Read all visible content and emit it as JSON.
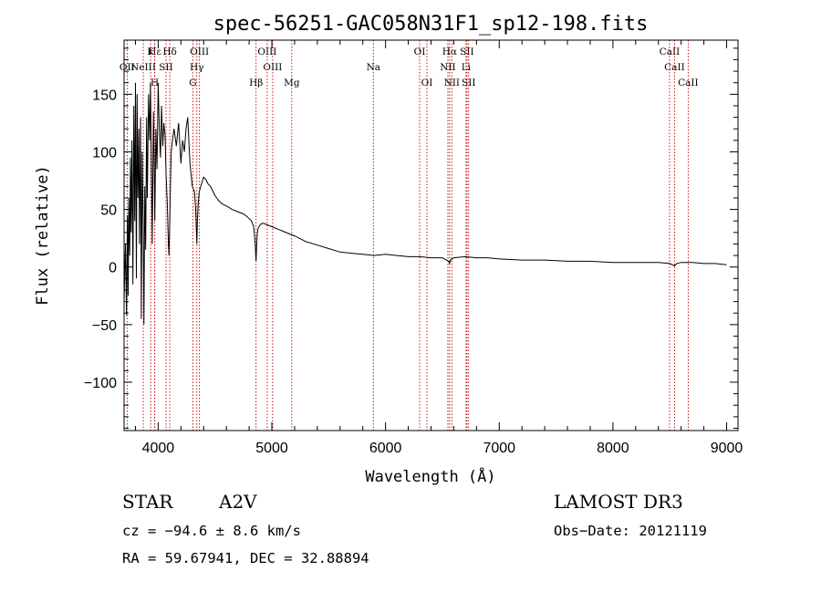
{
  "chart_data": {
    "type": "line",
    "title": "spec-56251-GAC058N31F1_sp12-198.fits",
    "xlabel": "Wavelength (Å)",
    "ylabel": "Flux (relative)",
    "xlim": [
      3700,
      9100
    ],
    "ylim": [
      -142,
      197
    ],
    "xticks": [
      4000,
      5000,
      6000,
      7000,
      8000,
      9000
    ],
    "xtick_labels": [
      "4000",
      "5000",
      "6000",
      "7000",
      "8000",
      "9000"
    ],
    "yticks": [
      -100,
      -50,
      0,
      50,
      100,
      150
    ],
    "ytick_labels": [
      "−100",
      "−50",
      "0",
      "50",
      "100",
      "150"
    ],
    "series": [
      {
        "name": "spectrum",
        "x": [
          3700,
          3712,
          3722,
          3730,
          3736,
          3742,
          3750,
          3756,
          3762,
          3770,
          3778,
          3786,
          3794,
          3800,
          3808,
          3815,
          3822,
          3830,
          3836,
          3845,
          3852,
          3860,
          3868,
          3875,
          3882,
          3890,
          3898,
          3905,
          3915,
          3925,
          3932,
          3940,
          3948,
          3958,
          3965,
          3970,
          3980,
          3990,
          4000,
          4010,
          4020,
          4030,
          4040,
          4050,
          4060,
          4070,
          4080,
          4090,
          4095,
          4102,
          4108,
          4115,
          4125,
          4140,
          4160,
          4180,
          4200,
          4215,
          4230,
          4245,
          4260,
          4270,
          4280,
          4290,
          4300,
          4310,
          4320,
          4330,
          4335,
          4340,
          4345,
          4352,
          4360,
          4375,
          4390,
          4400,
          4420,
          4440,
          4460,
          4480,
          4500,
          4530,
          4560,
          4600,
          4650,
          4700,
          4750,
          4780,
          4800,
          4820,
          4840,
          4850,
          4856,
          4861,
          4866,
          4872,
          4880,
          4900,
          4920,
          4950,
          5000,
          5050,
          5100,
          5150,
          5200,
          5300,
          5400,
          5500,
          5600,
          5700,
          5800,
          5900,
          6000,
          6100,
          6200,
          6300,
          6400,
          6500,
          6555,
          6563,
          6570,
          6600,
          6700,
          6800,
          6900,
          7000,
          7200,
          7400,
          7600,
          7800,
          8000,
          8200,
          8400,
          8500,
          8542,
          8560,
          8600,
          8700,
          8800,
          8900,
          9000
        ],
        "y": [
          -30,
          20,
          -42,
          45,
          -25,
          60,
          10,
          95,
          30,
          110,
          -15,
          140,
          40,
          160,
          -10,
          150,
          60,
          120,
          20,
          130,
          -45,
          100,
          40,
          -50,
          70,
          15,
          130,
          60,
          150,
          110,
          160,
          95,
          20,
          135,
          90,
          40,
          120,
          85,
          160,
          120,
          95,
          140,
          105,
          125,
          115,
          80,
          55,
          20,
          10,
          40,
          70,
          100,
          110,
          120,
          105,
          125,
          90,
          110,
          100,
          120,
          130,
          110,
          90,
          80,
          70,
          68,
          65,
          50,
          35,
          20,
          40,
          55,
          65,
          70,
          75,
          78,
          76,
          72,
          70,
          66,
          62,
          58,
          55,
          53,
          50,
          48,
          46,
          44,
          42,
          40,
          35,
          25,
          15,
          5,
          18,
          30,
          34,
          37,
          38,
          37,
          35,
          33,
          31,
          29,
          27,
          22,
          19,
          16,
          13,
          12,
          11,
          10,
          11,
          10,
          9,
          9,
          8,
          8,
          5,
          3,
          6,
          8,
          9,
          8,
          8,
          7,
          6,
          6,
          5,
          5,
          4,
          4,
          4,
          3,
          1,
          3,
          4,
          4,
          3,
          3,
          2
        ]
      }
    ],
    "spectral_lines": [
      {
        "label": "Hα",
        "x": 6563,
        "row": 1
      },
      {
        "label": "Hβ",
        "x": 4861,
        "row": 3
      },
      {
        "label": "Hγ",
        "x": 4340,
        "row": 2
      },
      {
        "label": "Hδ",
        "x": 4102,
        "row": 1
      },
      {
        "label": "Hε",
        "x": 3970,
        "row": 1
      },
      {
        "label": "K",
        "x": 3934,
        "row": 1
      },
      {
        "label": "H",
        "x": 3969,
        "row": 3
      },
      {
        "label": "G",
        "x": 4305,
        "row": 3
      },
      {
        "label": "Mg",
        "x": 5175,
        "row": 3
      },
      {
        "label": "Na",
        "x": 5893,
        "row": 2
      },
      {
        "label": "OII",
        "x": 3727,
        "row": 2
      },
      {
        "label": "OIII",
        "x": 4959,
        "row": 1
      },
      {
        "label": "OIII",
        "x": 5007,
        "row": 2
      },
      {
        "label": "OIII",
        "x": 4363,
        "row": 1
      },
      {
        "label": "NeIII",
        "x": 3869,
        "row": 2
      },
      {
        "label": "SII",
        "x": 4069,
        "row": 2
      },
      {
        "label": "OI",
        "x": 6300,
        "row": 1
      },
      {
        "label": "OI",
        "x": 6364,
        "row": 3
      },
      {
        "label": "NII",
        "x": 6548,
        "row": 2
      },
      {
        "label": "NII",
        "x": 6583,
        "row": 3
      },
      {
        "label": "SII",
        "x": 6716,
        "row": 1
      },
      {
        "label": "SII",
        "x": 6731,
        "row": 3
      },
      {
        "label": "Li",
        "x": 6708,
        "row": 2
      },
      {
        "label": "CaII",
        "x": 8498,
        "row": 1
      },
      {
        "label": "CaII",
        "x": 8542,
        "row": 2
      },
      {
        "label": "CaII",
        "x": 8662,
        "row": 3
      }
    ],
    "line_color": "#c00000"
  },
  "info": {
    "class_label": "STAR",
    "subclass": "A2V",
    "survey": "LAMOST DR3",
    "cz": "cz = −94.6 ± 8.6 km/s",
    "obs_date": "Obs−Date: 20121119",
    "coords": "RA =  59.67941, DEC =  32.88894"
  }
}
